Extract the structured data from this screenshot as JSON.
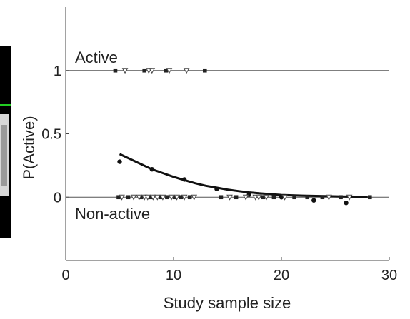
{
  "chart_data": {
    "type": "scatter",
    "xlabel": "Study sample size",
    "ylabel": "P(Active)",
    "xlim": [
      0,
      30
    ],
    "ylim": [
      -0.5,
      1.5
    ],
    "xticks": [
      0,
      10,
      20,
      30
    ],
    "yticks": [
      0,
      0.5,
      1
    ],
    "xtick_labels": [
      "0",
      "10",
      "20",
      "30"
    ],
    "ytick_labels": [
      "0",
      "0.5",
      "1"
    ],
    "annotations": [
      {
        "text": "Active",
        "x": 5.0,
        "y": 1.1
      },
      {
        "text": "Non-active",
        "x": 5.0,
        "y": -0.13
      }
    ],
    "reference_lines": [
      0,
      1
    ],
    "fit_curve": {
      "x": [
        5.0,
        6.0,
        7.0,
        8.0,
        9.0,
        10.0,
        11.0,
        12.0,
        13.0,
        14.0,
        15.0,
        16.0,
        17.0,
        18.0,
        19.0,
        20.0,
        22.0,
        24.0,
        26.0,
        28.0
      ],
      "y": [
        0.34,
        0.3,
        0.26,
        0.22,
        0.19,
        0.16,
        0.135,
        0.11,
        0.09,
        0.075,
        0.06,
        0.048,
        0.038,
        0.03,
        0.024,
        0.018,
        0.012,
        0.008,
        0.005,
        0.003
      ]
    },
    "series": [
      {
        "marker": "circle",
        "x": [
          5.0,
          8.0,
          11.0,
          14.0,
          17.0,
          20.0,
          23.0,
          26.0
        ],
        "y": [
          0.28,
          0.22,
          0.14,
          0.065,
          0.02,
          0.0,
          -0.025,
          -0.045
        ]
      },
      {
        "marker": "square",
        "x": [
          4.6,
          7.3,
          9.3,
          12.9
        ],
        "y": [
          1,
          1,
          1,
          1
        ]
      },
      {
        "marker": "triangle",
        "x": [
          5.5,
          7.7,
          8.0,
          9.6,
          11.2
        ],
        "y": [
          1,
          1,
          1,
          1,
          1
        ]
      },
      {
        "marker": "square",
        "x": [
          4.9,
          5.8,
          7.0,
          7.9,
          8.8,
          9.4,
          10.1,
          10.7,
          11.5,
          14.4,
          15.8,
          18.3,
          19.3,
          21.2,
          22.4,
          23.8,
          25.5,
          28.2
        ],
        "y": [
          0,
          0,
          0,
          0,
          0,
          0,
          0,
          0,
          0,
          0,
          0,
          0,
          0,
          0,
          0,
          0,
          0,
          0
        ]
      },
      {
        "marker": "triangle",
        "x": [
          5.2,
          6.3,
          6.8,
          7.3,
          7.6,
          8.1,
          8.5,
          9.0,
          9.8,
          10.3,
          11.0,
          11.9,
          15.2,
          16.7,
          17.6,
          17.9,
          18.6,
          20.3,
          24.4,
          26.3
        ],
        "y": [
          0,
          0,
          0,
          0,
          0,
          0,
          0,
          0,
          0,
          0,
          0,
          0,
          0,
          0,
          0,
          0,
          0,
          0,
          0,
          0
        ]
      }
    ]
  }
}
